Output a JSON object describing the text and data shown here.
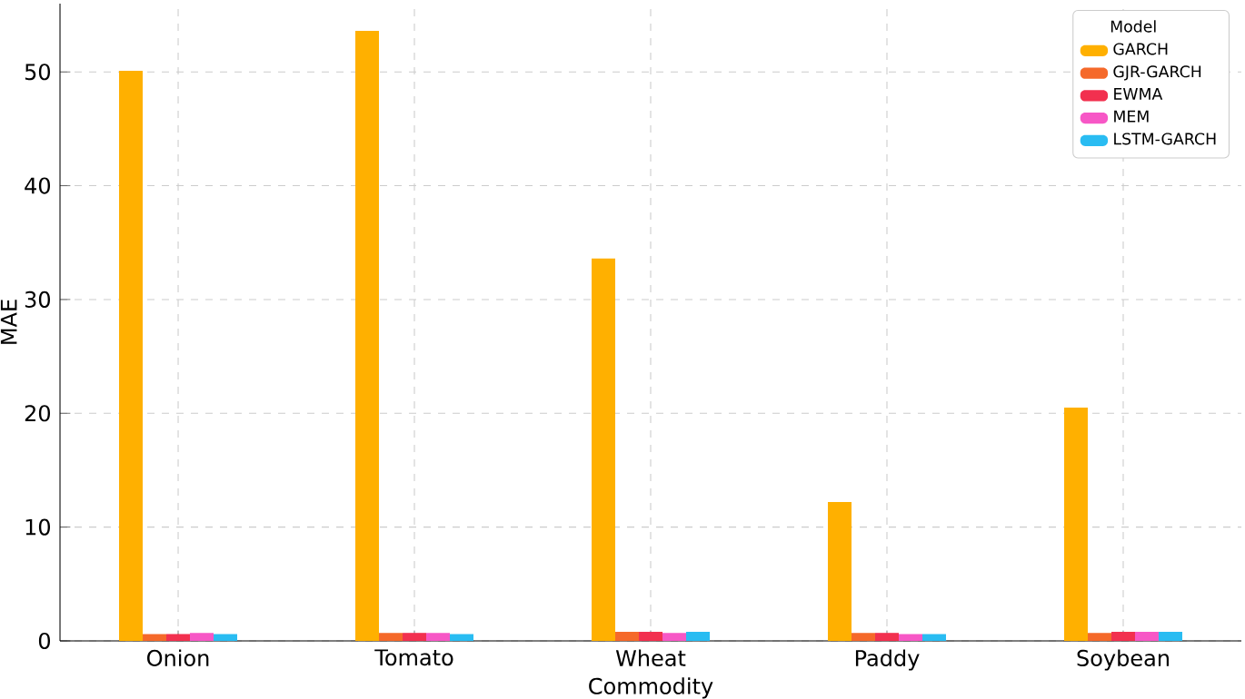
{
  "chart_data": {
    "type": "bar",
    "xlabel": "Commodity",
    "ylabel": "MAE",
    "legend_title": "Model",
    "categories": [
      "Onion",
      "Tomato",
      "Wheat",
      "Paddy",
      "Soybean"
    ],
    "series": [
      {
        "name": "GARCH",
        "color": "#ffb000",
        "values": [
          50.1,
          53.6,
          33.6,
          12.2,
          20.5
        ]
      },
      {
        "name": "GJR-GARCH",
        "color": "#f5692a",
        "values": [
          0.6,
          0.7,
          0.8,
          0.7,
          0.7
        ]
      },
      {
        "name": "EWMA",
        "color": "#f2304f",
        "values": [
          0.6,
          0.7,
          0.8,
          0.7,
          0.8
        ]
      },
      {
        "name": "MEM",
        "color": "#f757c6",
        "values": [
          0.7,
          0.7,
          0.7,
          0.6,
          0.8
        ]
      },
      {
        "name": "LSTM-GARCH",
        "color": "#29bcf2",
        "values": [
          0.6,
          0.6,
          0.8,
          0.6,
          0.8
        ]
      }
    ],
    "ylim": [
      0,
      56
    ],
    "yticks": [
      0,
      10,
      20,
      30,
      40,
      50
    ],
    "grid": true,
    "legend": "top right"
  }
}
